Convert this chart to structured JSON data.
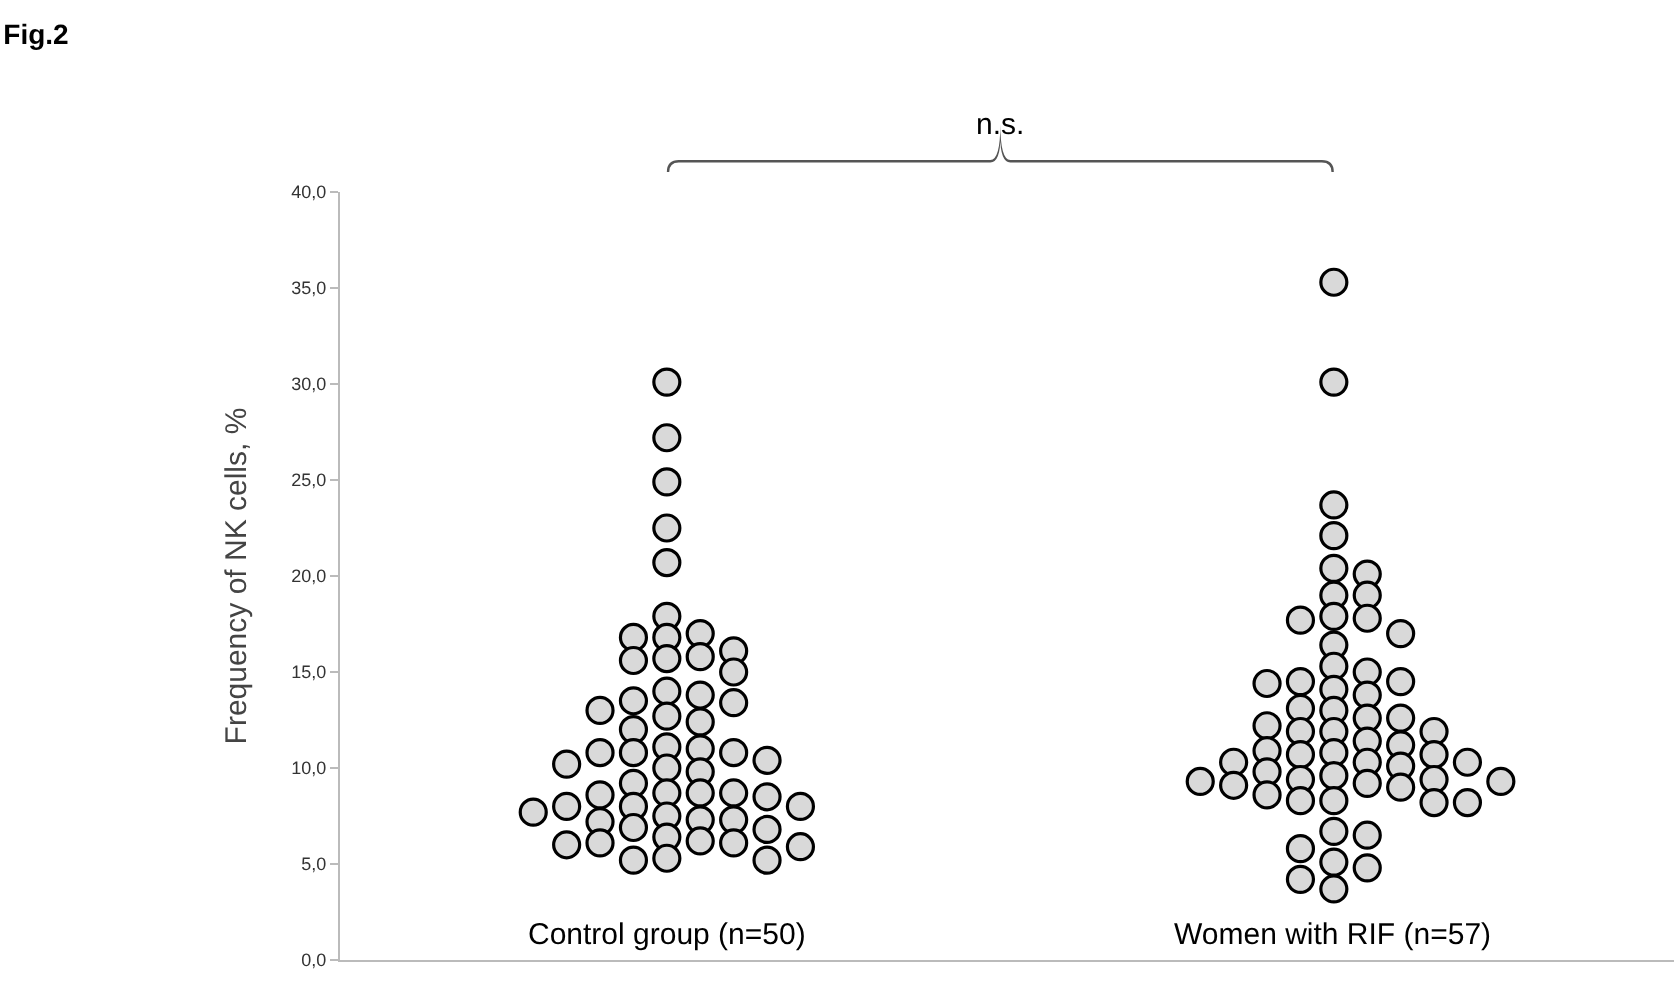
{
  "chart_data": {
    "type": "scatter",
    "title": "Fig.2",
    "ylabel": "Frequency of NK cells, %",
    "annotations": [
      "n.s."
    ],
    "categories": [
      "Control group (n=50)",
      "Women with RIF (n=57)"
    ],
    "ylim": [
      0,
      40
    ],
    "yticks": [
      {
        "value": 0,
        "label": "0,0"
      },
      {
        "value": 5,
        "label": "5,0"
      },
      {
        "value": 10,
        "label": "10,0"
      },
      {
        "value": 15,
        "label": "15,0"
      },
      {
        "value": 20,
        "label": "20,0"
      },
      {
        "value": 25,
        "label": "25,0"
      },
      {
        "value": 30,
        "label": "30,0"
      },
      {
        "value": 35,
        "label": "35,0"
      },
      {
        "value": 40,
        "label": "40,0"
      }
    ],
    "grid": false,
    "marker": "circle",
    "series": [
      {
        "color": "#d9d9d9",
        "x": [
          "Control group (n=50)",
          "Control group (n=50)",
          "Control group (n=50)",
          "Control group (n=50)",
          "Control group (n=50)",
          "Control group (n=50)",
          "Control group (n=50)",
          "Control group (n=50)",
          "Control group (n=50)",
          "Control group (n=50)",
          "Control group (n=50)",
          "Control group (n=50)",
          "Control group (n=50)",
          "Control group (n=50)",
          "Control group (n=50)",
          "Control group (n=50)",
          "Control group (n=50)",
          "Control group (n=50)",
          "Control group (n=50)",
          "Control group (n=50)",
          "Control group (n=50)",
          "Control group (n=50)",
          "Control group (n=50)",
          "Control group (n=50)",
          "Control group (n=50)",
          "Control group (n=50)",
          "Control group (n=50)",
          "Control group (n=50)",
          "Control group (n=50)",
          "Control group (n=50)",
          "Control group (n=50)",
          "Control group (n=50)",
          "Control group (n=50)",
          "Control group (n=50)",
          "Control group (n=50)",
          "Control group (n=50)",
          "Control group (n=50)",
          "Control group (n=50)",
          "Control group (n=50)",
          "Control group (n=50)",
          "Control group (n=50)",
          "Control group (n=50)",
          "Control group (n=50)",
          "Control group (n=50)",
          "Control group (n=50)",
          "Control group (n=50)",
          "Control group (n=50)",
          "Control group (n=50)",
          "Control group (n=50)",
          "Control group (n=50)",
          "Control group (n=50)",
          "Control group (n=50)",
          "Control group (n=50)",
          "Control group (n=50)",
          "Control group (n=50)",
          "Control group (n=50)"
        ],
        "values": [
          30.1,
          27.2,
          24.9,
          22.5,
          20.7,
          17.9,
          17.0,
          16.8,
          16.8,
          16.1,
          15.8,
          15.7,
          15.6,
          15.0,
          14.0,
          13.8,
          13.5,
          13.4,
          13.0,
          12.7,
          12.4,
          12.0,
          11.1,
          11.0,
          10.8,
          10.8,
          10.8,
          10.4,
          10.2,
          10.0,
          9.8,
          9.2,
          8.7,
          8.7,
          8.7,
          8.6,
          8.5,
          8.0,
          8.0,
          8.0,
          7.7,
          7.5,
          7.3,
          7.3,
          7.2,
          6.9,
          6.8,
          6.4,
          6.2,
          6.1,
          6.1,
          6.0,
          5.9,
          5.3,
          5.2,
          5.2
        ]
      },
      {
        "color": "#d9d9d9",
        "x": [
          "Women with RIF (n=57)",
          "Women with RIF (n=57)",
          "Women with RIF (n=57)",
          "Women with RIF (n=57)",
          "Women with RIF (n=57)",
          "Women with RIF (n=57)",
          "Women with RIF (n=57)",
          "Women with RIF (n=57)",
          "Women with RIF (n=57)",
          "Women with RIF (n=57)",
          "Women with RIF (n=57)",
          "Women with RIF (n=57)",
          "Women with RIF (n=57)",
          "Women with RIF (n=57)",
          "Women with RIF (n=57)",
          "Women with RIF (n=57)",
          "Women with RIF (n=57)",
          "Women with RIF (n=57)",
          "Women with RIF (n=57)",
          "Women with RIF (n=57)",
          "Women with RIF (n=57)",
          "Women with RIF (n=57)",
          "Women with RIF (n=57)",
          "Women with RIF (n=57)",
          "Women with RIF (n=57)",
          "Women with RIF (n=57)",
          "Women with RIF (n=57)",
          "Women with RIF (n=57)",
          "Women with RIF (n=57)",
          "Women with RIF (n=57)",
          "Women with RIF (n=57)",
          "Women with RIF (n=57)",
          "Women with RIF (n=57)",
          "Women with RIF (n=57)",
          "Women with RIF (n=57)",
          "Women with RIF (n=57)",
          "Women with RIF (n=57)",
          "Women with RIF (n=57)",
          "Women with RIF (n=57)",
          "Women with RIF (n=57)",
          "Women with RIF (n=57)",
          "Women with RIF (n=57)",
          "Women with RIF (n=57)",
          "Women with RIF (n=57)",
          "Women with RIF (n=57)",
          "Women with RIF (n=57)",
          "Women with RIF (n=57)",
          "Women with RIF (n=57)",
          "Women with RIF (n=57)",
          "Women with RIF (n=57)",
          "Women with RIF (n=57)",
          "Women with RIF (n=57)",
          "Women with RIF (n=57)",
          "Women with RIF (n=57)",
          "Women with RIF (n=57)",
          "Women with RIF (n=57)",
          "Women with RIF (n=57)",
          "Women with RIF (n=57)",
          "Women with RIF (n=57)"
        ],
        "values": [
          35.3,
          30.1,
          23.7,
          22.1,
          20.4,
          20.1,
          19.0,
          19.0,
          17.9,
          17.8,
          17.7,
          17.0,
          16.4,
          15.3,
          15.0,
          14.5,
          14.5,
          14.4,
          14.1,
          13.8,
          13.1,
          13.0,
          12.6,
          12.6,
          12.2,
          11.9,
          11.9,
          11.9,
          11.4,
          11.2,
          10.9,
          10.8,
          10.7,
          10.7,
          10.3,
          10.3,
          10.3,
          10.1,
          9.8,
          9.6,
          9.4,
          9.4,
          9.3,
          9.3,
          9.2,
          9.1,
          9.0,
          8.6,
          8.3,
          8.3,
          8.2,
          8.2,
          6.7,
          6.5,
          5.8,
          5.1,
          4.8,
          4.2,
          3.7
        ]
      }
    ]
  }
}
